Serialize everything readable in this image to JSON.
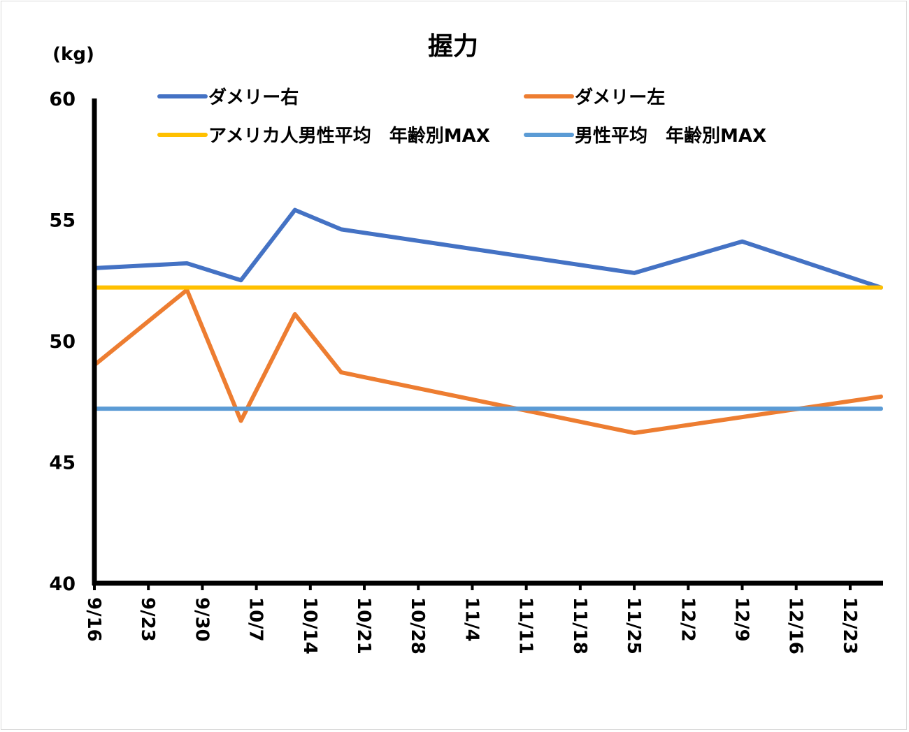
{
  "chart_data": {
    "type": "line",
    "title": "握力",
    "ylabel": "(kg)",
    "xlabel": "",
    "ylim": [
      40,
      60
    ],
    "yticks": [
      40,
      45,
      50,
      55,
      60
    ],
    "xrange": [
      "9/16",
      "12/27"
    ],
    "xticks": [
      "9/16",
      "9/23",
      "9/30",
      "10/7",
      "10/14",
      "10/21",
      "10/28",
      "11/4",
      "11/11",
      "11/18",
      "11/25",
      "12/2",
      "12/9",
      "12/16",
      "12/23"
    ],
    "grid": false,
    "legend_position": "top",
    "series": [
      {
        "name": "ダメリー右",
        "color": "#4472C4",
        "x": [
          "9/16",
          "9/28",
          "10/5",
          "10/12",
          "10/18",
          "11/25",
          "12/9",
          "12/27"
        ],
        "values": [
          53.0,
          53.2,
          52.5,
          55.4,
          54.6,
          52.8,
          54.1,
          52.2
        ]
      },
      {
        "name": "ダメリー左",
        "color": "#ED7D31",
        "x": [
          "9/16",
          "9/28",
          "10/5",
          "10/12",
          "10/18",
          "11/25",
          "12/27"
        ],
        "values": [
          49.0,
          52.1,
          46.7,
          51.1,
          48.7,
          46.2,
          47.7
        ]
      },
      {
        "name": "アメリカ人男性平均　年齢別MAX",
        "color": "#FFC000",
        "x": [
          "9/16",
          "12/27"
        ],
        "values": [
          52.2,
          52.2
        ]
      },
      {
        "name": "男性平均　年齢別MAX",
        "color": "#5B9BD5",
        "x": [
          "9/16",
          "12/27"
        ],
        "values": [
          47.2,
          47.2
        ]
      }
    ]
  }
}
